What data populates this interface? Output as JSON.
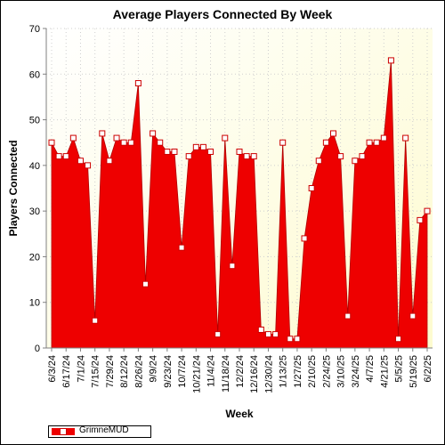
{
  "chart_data": {
    "type": "area",
    "title": "Average Players Connected By Week",
    "xlabel": "Week",
    "ylabel": "Players Connected",
    "ylim": [
      0,
      70
    ],
    "yticks": [
      0,
      10,
      20,
      30,
      40,
      50,
      60,
      70
    ],
    "grid": true,
    "legend_position": "bottom-left",
    "xtick_labels": [
      "6/3/24",
      "6/17/24",
      "7/1/24",
      "7/15/24",
      "7/29/24",
      "8/12/24",
      "8/26/24",
      "9/9/24",
      "9/23/24",
      "10/7/24",
      "10/21/24",
      "11/4/24",
      "11/18/24",
      "12/2/24",
      "12/16/24",
      "12/30/24",
      "1/13/25",
      "1/27/25",
      "2/10/25",
      "2/24/25",
      "3/10/25",
      "3/24/25",
      "4/7/25",
      "4/21/25",
      "5/5/25",
      "5/19/25",
      "6/2/25"
    ],
    "series": [
      {
        "name": "GrimneMUD",
        "color": "#ee0000",
        "values": [
          45,
          42,
          42,
          46,
          41,
          40,
          6,
          47,
          41,
          46,
          45,
          45,
          58,
          14,
          47,
          45,
          43,
          43,
          22,
          42,
          44,
          44,
          43,
          3,
          46,
          18,
          43,
          42,
          42,
          4,
          3,
          3,
          45,
          2,
          2,
          24,
          35,
          41,
          45,
          47,
          42,
          7,
          41,
          42,
          45,
          45,
          46,
          63,
          2,
          46,
          7,
          28,
          30
        ]
      }
    ]
  }
}
